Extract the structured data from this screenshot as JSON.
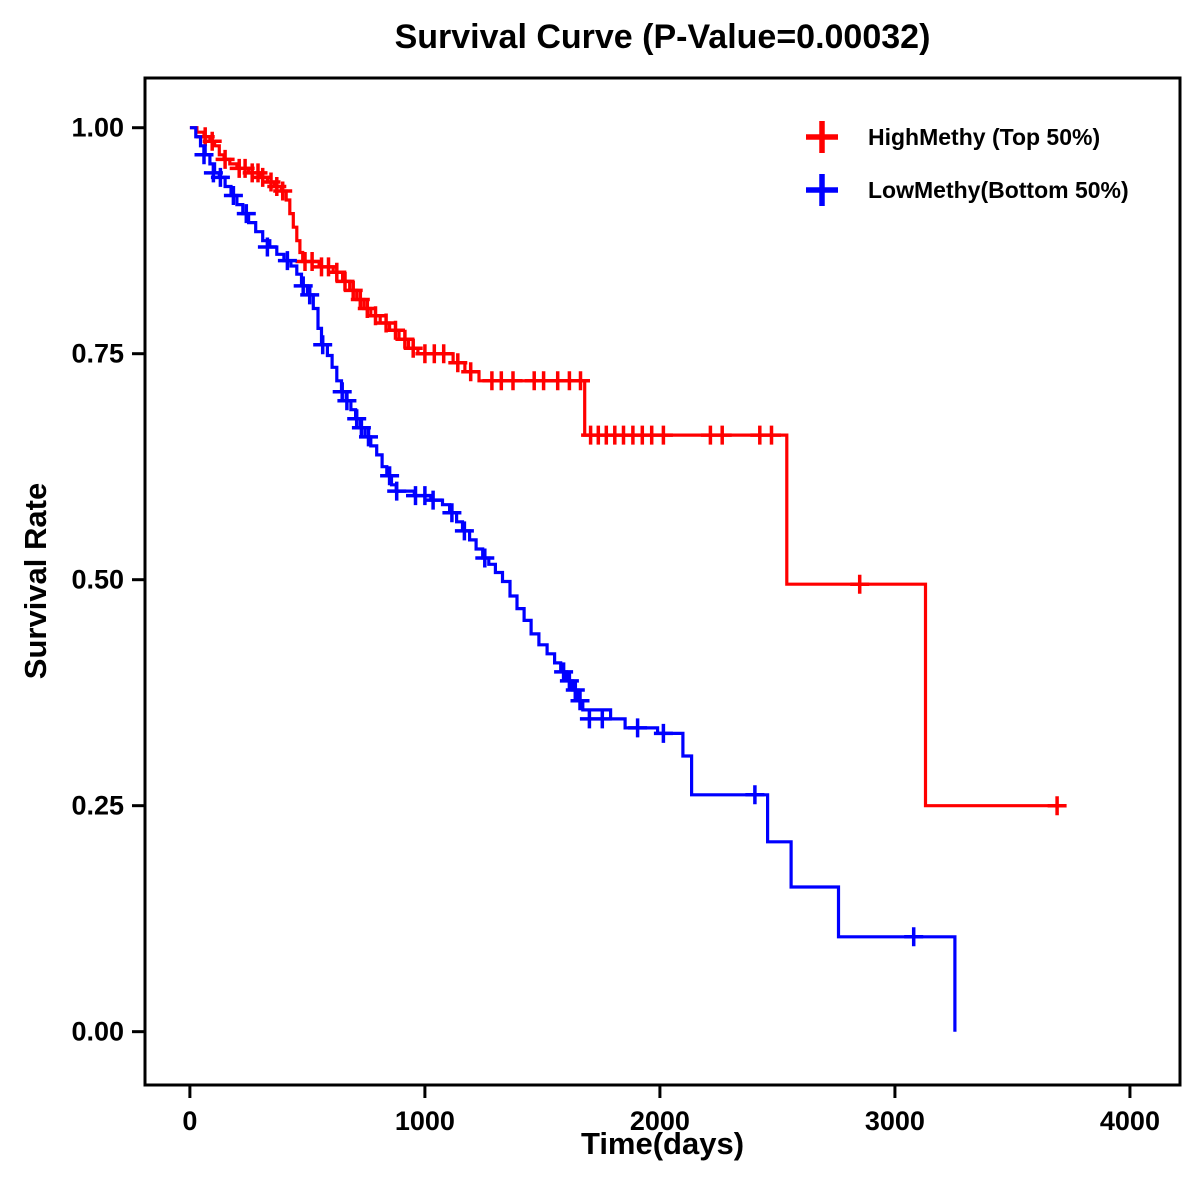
{
  "title": "Survival Curve (P-Value=0.00032)",
  "chart_data": {
    "type": "line",
    "subtype": "kaplan_meier_step",
    "title": "Survival Curve (P-Value=0.00032)",
    "xlabel": "Time(days)",
    "ylabel": "Survival Rate",
    "p_value": "0.00032",
    "xlim": [
      -191,
      4213
    ],
    "ylim": [
      -0.059,
      1.055
    ],
    "xticks": [
      0,
      1000,
      2000,
      3000,
      4000
    ],
    "xtick_labels": [
      "0",
      "1000",
      "2000",
      "3000",
      "4000"
    ],
    "yticks": [
      0,
      0.25,
      0.5,
      0.75,
      1
    ],
    "ytick_labels": [
      "0.00",
      "0.25",
      "0.50",
      "0.75",
      "1.00"
    ],
    "grid": false,
    "legend_position": "top-right",
    "series": [
      {
        "id": "highmethy",
        "name": "HighMethy (Top 50%)",
        "color": "#FF0000",
        "steps": [
          [
            0,
            1.0
          ],
          [
            30,
            0.995
          ],
          [
            60,
            0.99
          ],
          [
            85,
            0.985
          ],
          [
            105,
            0.98
          ],
          [
            125,
            0.97
          ],
          [
            145,
            0.965
          ],
          [
            170,
            0.96
          ],
          [
            200,
            0.955
          ],
          [
            250,
            0.95
          ],
          [
            300,
            0.945
          ],
          [
            330,
            0.94
          ],
          [
            360,
            0.935
          ],
          [
            390,
            0.93
          ],
          [
            410,
            0.92
          ],
          [
            425,
            0.905
          ],
          [
            440,
            0.89
          ],
          [
            455,
            0.875
          ],
          [
            468,
            0.862
          ],
          [
            480,
            0.852
          ],
          [
            550,
            0.846
          ],
          [
            610,
            0.84
          ],
          [
            650,
            0.83
          ],
          [
            680,
            0.82
          ],
          [
            710,
            0.81
          ],
          [
            740,
            0.8
          ],
          [
            770,
            0.792
          ],
          [
            810,
            0.784
          ],
          [
            850,
            0.776
          ],
          [
            890,
            0.766
          ],
          [
            930,
            0.756
          ],
          [
            970,
            0.75
          ],
          [
            1120,
            0.74
          ],
          [
            1170,
            0.73
          ],
          [
            1230,
            0.72
          ],
          [
            1680,
            0.66
          ],
          [
            2540,
            0.495
          ],
          [
            3130,
            0.25
          ],
          [
            3690,
            0.25
          ]
        ],
        "censors": [
          [
            65,
            0.99
          ],
          [
            95,
            0.985
          ],
          [
            150,
            0.965
          ],
          [
            210,
            0.955
          ],
          [
            235,
            0.955
          ],
          [
            265,
            0.95
          ],
          [
            290,
            0.95
          ],
          [
            310,
            0.945
          ],
          [
            345,
            0.94
          ],
          [
            370,
            0.935
          ],
          [
            395,
            0.93
          ],
          [
            490,
            0.852
          ],
          [
            520,
            0.852
          ],
          [
            560,
            0.846
          ],
          [
            590,
            0.846
          ],
          [
            625,
            0.84
          ],
          [
            660,
            0.83
          ],
          [
            695,
            0.82
          ],
          [
            725,
            0.81
          ],
          [
            755,
            0.8
          ],
          [
            790,
            0.792
          ],
          [
            835,
            0.784
          ],
          [
            875,
            0.776
          ],
          [
            915,
            0.766
          ],
          [
            950,
            0.756
          ],
          [
            1000,
            0.75
          ],
          [
            1040,
            0.75
          ],
          [
            1080,
            0.75
          ],
          [
            1140,
            0.74
          ],
          [
            1195,
            0.73
          ],
          [
            1285,
            0.72
          ],
          [
            1325,
            0.72
          ],
          [
            1375,
            0.72
          ],
          [
            1465,
            0.72
          ],
          [
            1505,
            0.72
          ],
          [
            1565,
            0.72
          ],
          [
            1615,
            0.72
          ],
          [
            1662,
            0.72
          ],
          [
            1705,
            0.66
          ],
          [
            1738,
            0.66
          ],
          [
            1772,
            0.66
          ],
          [
            1808,
            0.66
          ],
          [
            1845,
            0.66
          ],
          [
            1885,
            0.66
          ],
          [
            1925,
            0.66
          ],
          [
            1965,
            0.66
          ],
          [
            2015,
            0.66
          ],
          [
            2215,
            0.66
          ],
          [
            2265,
            0.66
          ],
          [
            2425,
            0.66
          ],
          [
            2475,
            0.66
          ],
          [
            2850,
            0.495
          ],
          [
            3690,
            0.25
          ]
        ]
      },
      {
        "id": "lowmethy",
        "name": "LowMethy(Bottom 50%)",
        "color": "#0000FF",
        "steps": [
          [
            0,
            1.0
          ],
          [
            25,
            0.99
          ],
          [
            45,
            0.98
          ],
          [
            65,
            0.97
          ],
          [
            85,
            0.96
          ],
          [
            105,
            0.95
          ],
          [
            125,
            0.945
          ],
          [
            150,
            0.935
          ],
          [
            175,
            0.925
          ],
          [
            200,
            0.915
          ],
          [
            225,
            0.905
          ],
          [
            250,
            0.895
          ],
          [
            280,
            0.885
          ],
          [
            310,
            0.875
          ],
          [
            340,
            0.868
          ],
          [
            370,
            0.86
          ],
          [
            400,
            0.853
          ],
          [
            430,
            0.847
          ],
          [
            455,
            0.838
          ],
          [
            475,
            0.825
          ],
          [
            500,
            0.815
          ],
          [
            525,
            0.8
          ],
          [
            545,
            0.778
          ],
          [
            560,
            0.76
          ],
          [
            585,
            0.748
          ],
          [
            605,
            0.735
          ],
          [
            625,
            0.72
          ],
          [
            645,
            0.708
          ],
          [
            665,
            0.698
          ],
          [
            685,
            0.688
          ],
          [
            705,
            0.678
          ],
          [
            725,
            0.668
          ],
          [
            745,
            0.658
          ],
          [
            770,
            0.648
          ],
          [
            795,
            0.638
          ],
          [
            818,
            0.625
          ],
          [
            838,
            0.615
          ],
          [
            858,
            0.605
          ],
          [
            878,
            0.598
          ],
          [
            955,
            0.593
          ],
          [
            1025,
            0.588
          ],
          [
            1075,
            0.583
          ],
          [
            1105,
            0.574
          ],
          [
            1135,
            0.564
          ],
          [
            1160,
            0.554
          ],
          [
            1190,
            0.544
          ],
          [
            1218,
            0.534
          ],
          [
            1246,
            0.524
          ],
          [
            1272,
            0.517
          ],
          [
            1300,
            0.508
          ],
          [
            1330,
            0.498
          ],
          [
            1362,
            0.482
          ],
          [
            1392,
            0.468
          ],
          [
            1422,
            0.455
          ],
          [
            1452,
            0.44
          ],
          [
            1485,
            0.428
          ],
          [
            1520,
            0.418
          ],
          [
            1552,
            0.408
          ],
          [
            1578,
            0.398
          ],
          [
            1603,
            0.388
          ],
          [
            1628,
            0.378
          ],
          [
            1652,
            0.366
          ],
          [
            1672,
            0.356
          ],
          [
            1790,
            0.346
          ],
          [
            1852,
            0.336
          ],
          [
            1990,
            0.33
          ],
          [
            2098,
            0.305
          ],
          [
            2135,
            0.262
          ],
          [
            2458,
            0.21
          ],
          [
            2558,
            0.16
          ],
          [
            2760,
            0.105
          ],
          [
            3255,
            0
          ]
        ],
        "censors": [
          [
            60,
            0.97
          ],
          [
            100,
            0.95
          ],
          [
            130,
            0.945
          ],
          [
            185,
            0.925
          ],
          [
            240,
            0.905
          ],
          [
            330,
            0.868
          ],
          [
            415,
            0.853
          ],
          [
            482,
            0.825
          ],
          [
            510,
            0.815
          ],
          [
            565,
            0.76
          ],
          [
            648,
            0.708
          ],
          [
            668,
            0.698
          ],
          [
            710,
            0.678
          ],
          [
            730,
            0.668
          ],
          [
            760,
            0.658
          ],
          [
            850,
            0.615
          ],
          [
            880,
            0.598
          ],
          [
            960,
            0.593
          ],
          [
            1000,
            0.593
          ],
          [
            1035,
            0.588
          ],
          [
            1115,
            0.574
          ],
          [
            1168,
            0.554
          ],
          [
            1255,
            0.524
          ],
          [
            1590,
            0.398
          ],
          [
            1615,
            0.388
          ],
          [
            1640,
            0.378
          ],
          [
            1660,
            0.366
          ],
          [
            1700,
            0.346
          ],
          [
            1755,
            0.346
          ],
          [
            1905,
            0.336
          ],
          [
            2015,
            0.33
          ],
          [
            2404,
            0.262
          ],
          [
            3080,
            0.105
          ]
        ]
      }
    ]
  }
}
